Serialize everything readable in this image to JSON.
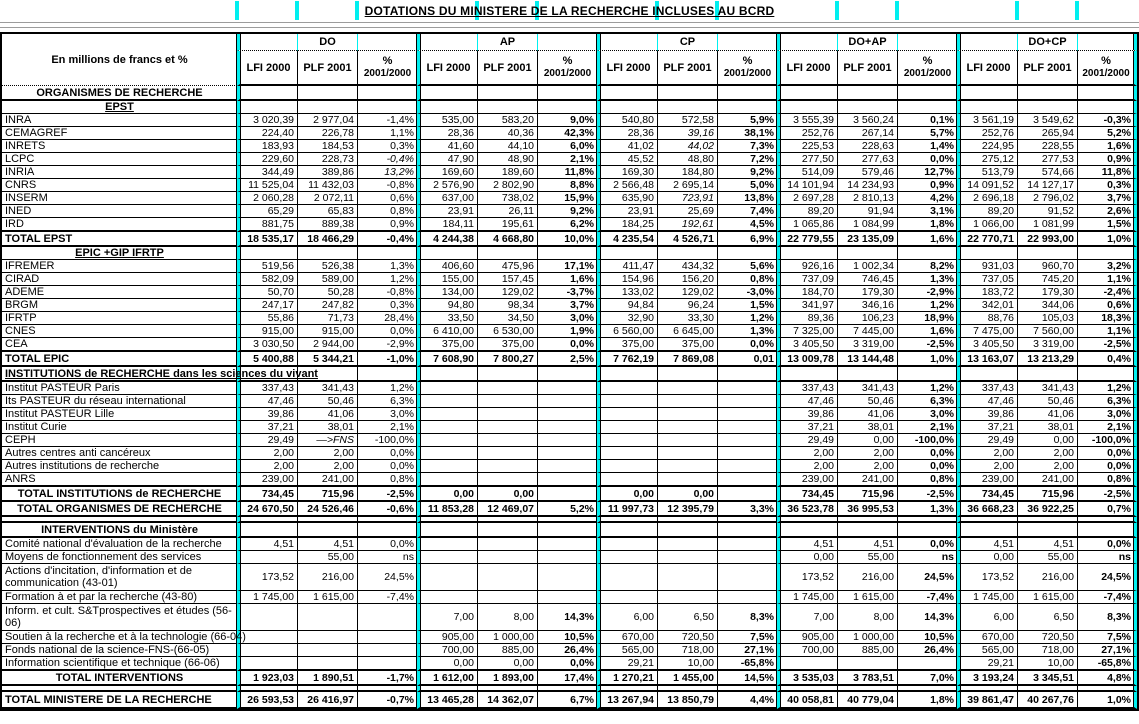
{
  "title": "DOTATIONS DU MINISTERE DE LA RECHERCHE INCLUSES AU BCRD",
  "accent_color": "#00efef",
  "header": {
    "corner": "En millions de francs et %",
    "groups": [
      "DO",
      "AP",
      "CP",
      "DO+AP",
      "DO+CP"
    ],
    "cols": [
      "LFI  2000",
      "PLF  2001"
    ],
    "pct1": "%",
    "pct2": "2001/2000"
  },
  "rows": [
    {
      "type": "section",
      "la": "c",
      "label": "ORGANISMES DE RECHERCHE"
    },
    {
      "type": "subheader",
      "la": "c",
      "u": true,
      "label": "EPST"
    },
    {
      "type": "data",
      "label": "INRA",
      "cells": [
        "3 020,39",
        "2 977,04",
        "-1,4%",
        "535,00",
        "583,20",
        "9,0%",
        "540,80",
        "572,58",
        "5,9%",
        "3 555,39",
        "3 560,24",
        "0,1%",
        "3 561,19",
        "3 549,62",
        "-0,3%"
      ]
    },
    {
      "type": "data",
      "label": "CEMAGREF",
      "cells": [
        "224,40",
        "226,78",
        "1,1%",
        "28,36",
        "40,36",
        "42,3%",
        "28,36",
        {
          "v": "39,16",
          "i": true
        },
        "38,1%",
        "252,76",
        "267,14",
        "5,7%",
        "252,76",
        "265,94",
        "5,2%"
      ]
    },
    {
      "type": "data",
      "label": "INRETS",
      "cells": [
        "183,93",
        "184,53",
        "0,3%",
        "41,60",
        "44,10",
        "6,0%",
        "41,02",
        {
          "v": "44,02",
          "i": true
        },
        "7,3%",
        "225,53",
        "228,63",
        "1,4%",
        "224,95",
        "228,55",
        "1,6%"
      ]
    },
    {
      "type": "data",
      "label": "LCPC",
      "cells": [
        "229,60",
        "228,73",
        {
          "v": "-0,4%",
          "i": true
        },
        "47,90",
        "48,90",
        "2,1%",
        "45,52",
        "48,80",
        "7,2%",
        "277,50",
        "277,63",
        "0,0%",
        "275,12",
        "277,53",
        "0,9%"
      ]
    },
    {
      "type": "data",
      "label": "INRIA",
      "cells": [
        "344,49",
        "389,86",
        {
          "v": "13,2%",
          "i": true
        },
        "169,60",
        "189,60",
        "11,8%",
        "169,30",
        "184,80",
        "9,2%",
        "514,09",
        "579,46",
        "12,7%",
        "513,79",
        "574,66",
        "11,8%"
      ]
    },
    {
      "type": "data",
      "label": "CNRS",
      "cells": [
        "11 525,04",
        "11 432,03",
        "-0,8%",
        "2 576,90",
        "2 802,90",
        "8,8%",
        "2 566,48",
        "2 695,14",
        "5,0%",
        "14 101,94",
        "14 234,93",
        "0,9%",
        "14 091,52",
        "14 127,17",
        "0,3%"
      ]
    },
    {
      "type": "data",
      "label": "INSERM",
      "cells": [
        "2 060,28",
        "2 072,11",
        "0,6%",
        "637,00",
        "738,02",
        "15,9%",
        "635,90",
        {
          "v": "723,91",
          "i": true
        },
        "13,8%",
        "2 697,28",
        "2 810,13",
        "4,2%",
        "2 696,18",
        "2 796,02",
        "3,7%"
      ]
    },
    {
      "type": "data",
      "label": "INED",
      "cells": [
        "65,29",
        "65,83",
        "0,8%",
        "23,91",
        "26,11",
        "9,2%",
        "23,91",
        "25,69",
        "7,4%",
        "89,20",
        "91,94",
        "3,1%",
        "89,20",
        "91,52",
        "2,6%"
      ]
    },
    {
      "type": "data",
      "label": "IRD",
      "cells": [
        "881,75",
        "889,38",
        "0,9%",
        "184,11",
        "195,61",
        "6,2%",
        "184,25",
        {
          "v": "192,61",
          "i": true
        },
        "4,5%",
        "1 065,86",
        "1 084,99",
        "1,8%",
        "1 066,00",
        "1 081,99",
        "1,5%"
      ]
    },
    {
      "type": "total",
      "la": "l",
      "label": "TOTAL EPST",
      "cells": [
        "18 535,17",
        "18 466,29",
        "-0,4%",
        "4 244,38",
        "4 668,80",
        "10,0%",
        "4 235,54",
        "4 526,71",
        "6,9%",
        "22 779,55",
        "23 135,09",
        "1,6%",
        "22 770,71",
        "22 993,00",
        "1,0%"
      ]
    },
    {
      "type": "subheader",
      "la": "c",
      "u": true,
      "label": "EPIC +GIP IFRTP"
    },
    {
      "type": "data",
      "label": "IFREMER",
      "cells": [
        "519,56",
        "526,38",
        "1,3%",
        "406,60",
        "475,96",
        "17,1%",
        "411,47",
        "434,32",
        "5,6%",
        "926,16",
        "1 002,34",
        "8,2%",
        "931,03",
        "960,70",
        "3,2%"
      ]
    },
    {
      "type": "data",
      "label": "CIRAD",
      "cells": [
        "582,09",
        "589,00",
        "1,2%",
        "155,00",
        "157,45",
        "1,6%",
        "154,96",
        "156,20",
        "0,8%",
        "737,09",
        "746,45",
        "1,3%",
        "737,05",
        "745,20",
        "1,1%"
      ]
    },
    {
      "type": "data",
      "label": "ADEME",
      "cells": [
        "50,70",
        "50,28",
        "-0,8%",
        "134,00",
        "129,02",
        "-3,7%",
        "133,02",
        "129,02",
        "-3,0%",
        "184,70",
        "179,30",
        "-2,9%",
        "183,72",
        "179,30",
        "-2,4%"
      ]
    },
    {
      "type": "data",
      "label": "BRGM",
      "cells": [
        "247,17",
        "247,82",
        "0,3%",
        "94,80",
        "98,34",
        "3,7%",
        "94,84",
        "96,24",
        "1,5%",
        "341,97",
        "346,16",
        "1,2%",
        "342,01",
        "344,06",
        "0,6%"
      ]
    },
    {
      "type": "data",
      "label": "IFRTP",
      "cells": [
        "55,86",
        "71,73",
        "28,4%",
        "33,50",
        "34,50",
        "3,0%",
        "32,90",
        "33,30",
        "1,2%",
        "89,36",
        "106,23",
        "18,9%",
        "88,76",
        "105,03",
        "18,3%"
      ]
    },
    {
      "type": "data",
      "label": "CNES",
      "cells": [
        "915,00",
        "915,00",
        "0,0%",
        "6 410,00",
        "6 530,00",
        "1,9%",
        "6 560,00",
        "6 645,00",
        "1,3%",
        "7 325,00",
        "7 445,00",
        "1,6%",
        "7 475,00",
        "7 560,00",
        "1,1%"
      ]
    },
    {
      "type": "data",
      "label": "CEA",
      "cells": [
        "3 030,50",
        "2 944,00",
        "-2,9%",
        "375,00",
        "375,00",
        "0,0%",
        "375,00",
        "375,00",
        "0,0%",
        "3 405,50",
        "3 319,00",
        "-2,5%",
        "3 405,50",
        "3 319,00",
        "-2,5%"
      ]
    },
    {
      "type": "total",
      "la": "l",
      "label": "TOTAL EPIC",
      "cells": [
        "5 400,88",
        "5 344,21",
        "-1,0%",
        "7 608,90",
        "7 800,27",
        "2,5%",
        "7 762,19",
        "7 869,08",
        "0,01",
        "13 009,78",
        "13 144,48",
        "1,0%",
        "13 163,07",
        "13 213,29",
        "0,4%"
      ]
    },
    {
      "type": "section",
      "la": "l",
      "u": true,
      "label": "INSTITUTIONS de RECHERCHE dans les sciences du vivant"
    },
    {
      "type": "data",
      "label": "Institut PASTEUR Paris",
      "cells": [
        "337,43",
        "341,43",
        "1,2%",
        "",
        "",
        "",
        "",
        "",
        "",
        "337,43",
        "341,43",
        "1,2%",
        "337,43",
        "341,43",
        "1,2%"
      ]
    },
    {
      "type": "data",
      "label": "Its PASTEUR du réseau international",
      "cells": [
        "47,46",
        "50,46",
        "6,3%",
        "",
        "",
        "",
        "",
        "",
        "",
        "47,46",
        "50,46",
        "6,3%",
        "47,46",
        "50,46",
        "6,3%"
      ]
    },
    {
      "type": "data",
      "label": "Institut PASTEUR Lille",
      "cells": [
        "39,86",
        "41,06",
        "3,0%",
        "",
        "",
        "",
        "",
        "",
        "",
        "39,86",
        "41,06",
        "3,0%",
        "39,86",
        "41,06",
        "3,0%"
      ]
    },
    {
      "type": "data",
      "label": "Institut Curie",
      "cells": [
        "37,21",
        "38,01",
        "2,1%",
        "",
        "",
        "",
        "",
        "",
        "",
        "37,21",
        "38,01",
        "2,1%",
        "37,21",
        "38,01",
        "2,1%"
      ]
    },
    {
      "type": "data",
      "label": "CEPH",
      "cells": [
        "29,49",
        {
          "v": "—>FNS",
          "i": true
        },
        "-100,0%",
        "",
        "",
        "",
        "",
        "",
        "",
        "29,49",
        "0,00",
        "-100,0%",
        "29,49",
        "0,00",
        "-100,0%"
      ]
    },
    {
      "type": "data",
      "label": "Autres  centres anti cancéreux",
      "cells": [
        "2,00",
        "2,00",
        "0,0%",
        "",
        "",
        "",
        "",
        "",
        "",
        "2,00",
        "2,00",
        "0,0%",
        "2,00",
        "2,00",
        "0,0%"
      ]
    },
    {
      "type": "data",
      "label": "Autres institutions de recherche",
      "cells": [
        "2,00",
        "2,00",
        "0,0%",
        "",
        "",
        "",
        "",
        "",
        "",
        "2,00",
        "2,00",
        "0,0%",
        "2,00",
        "2,00",
        "0,0%"
      ]
    },
    {
      "type": "data",
      "label": "ANRS",
      "cells": [
        "239,00",
        "241,00",
        "0,8%",
        "",
        "",
        "",
        "",
        "",
        "",
        "239,00",
        "241,00",
        "0,8%",
        "239,00",
        "241,00",
        "0,8%"
      ]
    },
    {
      "type": "total",
      "la": "c",
      "label": "TOTAL INSTITUTIONS de RECHERCHE",
      "cells": [
        "734,45",
        "715,96",
        "-2,5%",
        "0,00",
        "0,00",
        "",
        "0,00",
        "0,00",
        "",
        "734,45",
        "715,96",
        "-2,5%",
        "734,45",
        "715,96",
        "-2,5%"
      ]
    },
    {
      "type": "total",
      "la": "c",
      "label": "TOTAL ORGANISMES DE RECHERCHE",
      "cells": [
        "24 670,50",
        "24 526,46",
        "-0,6%",
        "11 853,28",
        "12 469,07",
        "5,2%",
        "11 997,73",
        "12 395,79",
        "3,3%",
        "36 523,78",
        "36 995,53",
        "1,3%",
        "36 668,23",
        "36 922,25",
        "0,7%"
      ]
    },
    {
      "type": "spacer",
      "label": ""
    },
    {
      "type": "section",
      "la": "c",
      "label": "INTERVENTIONS du Ministère"
    },
    {
      "type": "data",
      "label": "Comité national d'évaluation de la recherche",
      "cells": [
        "4,51",
        "4,51",
        "0,0%",
        "",
        "",
        "",
        "",
        "",
        "",
        "4,51",
        "4,51",
        "0,0%",
        "4,51",
        "4,51",
        "0,0%"
      ]
    },
    {
      "type": "data",
      "label": "Moyens de fonctionnement des services",
      "cells": [
        "",
        "55,00",
        "ns",
        "",
        "",
        "",
        "",
        "",
        "",
        "0,00",
        "55,00",
        "ns",
        "0,00",
        "55,00",
        "ns"
      ]
    },
    {
      "type": "data",
      "wrap": true,
      "label": "Actions d'incitation, d'information et de communication (43-01)",
      "cells": [
        "173,52",
        "216,00",
        "24,5%",
        "",
        "",
        "",
        "",
        "",
        "",
        "173,52",
        "216,00",
        "24,5%",
        "173,52",
        "216,00",
        "24,5%"
      ]
    },
    {
      "type": "data",
      "label": "Formation à et par la recherche (43-80)",
      "cells": [
        "1 745,00",
        "1 615,00",
        "-7,4%",
        "",
        "",
        "",
        "",
        "",
        "",
        "1 745,00",
        "1 615,00",
        "-7,4%",
        "1 745,00",
        "1 615,00",
        "-7,4%"
      ]
    },
    {
      "type": "data",
      "wrap": true,
      "label": "Inform. et cult. S&Tprospectives et études (56-06)",
      "cells": [
        "",
        "",
        "",
        "7,00",
        "8,00",
        "14,3%",
        "6,00",
        "6,50",
        "8,3%",
        "7,00",
        "8,00",
        "14,3%",
        "6,00",
        "6,50",
        "8,3%"
      ]
    },
    {
      "type": "data",
      "label": "Soutien à la recherche et à la technologie (66-04)",
      "cells": [
        "",
        "",
        "",
        "905,00",
        "1 000,00",
        "10,5%",
        "670,00",
        "720,50",
        "7,5%",
        "905,00",
        "1 000,00",
        "10,5%",
        "670,00",
        "720,50",
        "7,5%"
      ]
    },
    {
      "type": "data",
      "label": "Fonds national de la science-FNS-(66-05)",
      "cells": [
        "",
        "",
        "",
        "700,00",
        "885,00",
        "26,4%",
        "565,00",
        "718,00",
        "27,1%",
        "700,00",
        "885,00",
        "26,4%",
        "565,00",
        "718,00",
        "27,1%"
      ]
    },
    {
      "type": "data",
      "label": "Information scientifique et technique (66-06)",
      "cells": [
        "",
        "",
        "",
        "0,00",
        "0,00",
        "0,0%",
        "29,21",
        "10,00",
        "-65,8%",
        "",
        "",
        "",
        "29,21",
        "10,00",
        "-65,8%"
      ]
    },
    {
      "type": "total",
      "la": "c",
      "label": "TOTAL INTERVENTIONS",
      "cells": [
        "1 923,03",
        "1 890,51",
        "-1,7%",
        "1 612,00",
        "1 893,00",
        "17,4%",
        "1 270,21",
        "1 455,00",
        "14,5%",
        "3 535,03",
        "3 783,51",
        "7,0%",
        "3 193,24",
        "3 345,51",
        "4,8%"
      ]
    },
    {
      "type": "spacer",
      "label": ""
    },
    {
      "type": "grand",
      "la": "l",
      "label": "TOTAL  MINISTERE DE LA RECHERCHE",
      "cells": [
        "26 593,53",
        "26 416,97",
        "-0,7%",
        "13 465,28",
        "14 362,07",
        "6,7%",
        "13 267,94",
        "13 850,79",
        "4,4%",
        "40 058,81",
        "40 779,04",
        "1,8%",
        "39 861,47",
        "40 267,76",
        "1,0%"
      ]
    }
  ]
}
